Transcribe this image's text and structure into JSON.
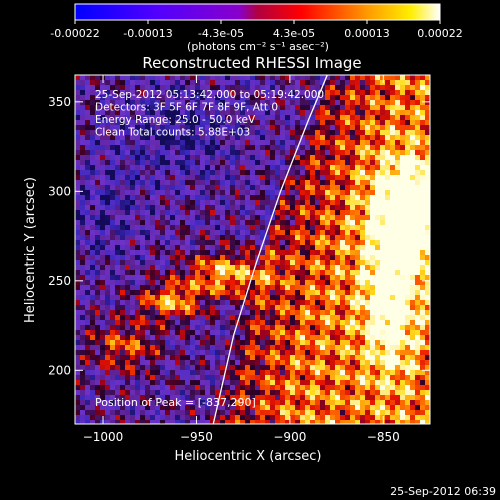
{
  "chart_data": {
    "type": "heatmap",
    "title": "Reconstructed RHESSI Image",
    "xlabel": "Heliocentric X (arcsec)",
    "ylabel": "Heliocentric Y (arcsec)",
    "xlim": [
      -1015,
      -825
    ],
    "ylim": [
      170,
      365
    ],
    "xticks": [
      -1000,
      -950,
      -900,
      -850
    ],
    "yticks": [
      200,
      250,
      300,
      350
    ],
    "colorbar": {
      "ticks": [
        "-0.00022",
        "-0.00013",
        "-4.3e-05",
        "4.3e-05",
        "0.00013",
        "0.00022"
      ],
      "units_label": "(photons cm⁻² s⁻¹ asec⁻²)",
      "range": [
        -0.00022,
        0.00022
      ],
      "colormap": [
        "#0000ff",
        "#7a00ff",
        "#ff0000",
        "#ffa500",
        "#ffff00",
        "#ffffff"
      ]
    },
    "annotations": [
      "25-Sep-2012 05:13:42.000 to 05:19:42.000",
      "Detectors: 3F 5F 6F 7F 8F 9F, Att 0",
      "Energy Range: 25.0 - 50.0 keV",
      "Clean     Total counts: 5.88E+03"
    ],
    "peak_label": "Position of Peak = [-837,290]",
    "peak": [
      -837,
      290
    ],
    "limb_curve": [
      [
        -941,
        170
      ],
      [
        -930,
        220
      ],
      [
        -918,
        260
      ],
      [
        -905,
        300
      ],
      [
        -890,
        340
      ],
      [
        -880,
        365
      ]
    ]
  },
  "footer": "25-Sep-2012 06:39"
}
